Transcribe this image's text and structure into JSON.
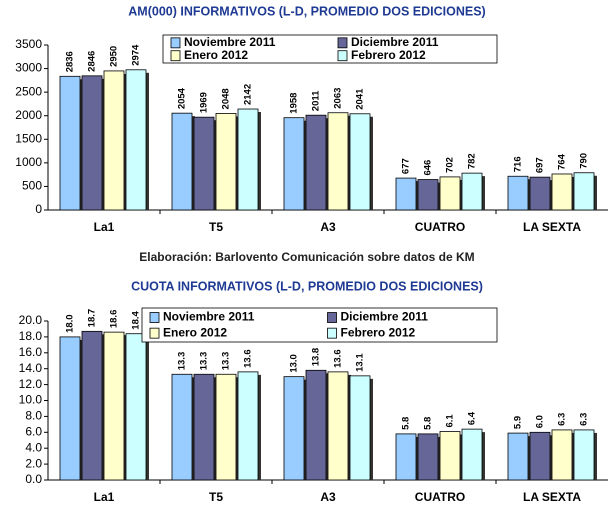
{
  "caption": "Elaboración: Barlovento Comunicación sobre datos de KM",
  "chart_data": [
    {
      "type": "bar",
      "title": "AM(000) INFORMATIVOS (L-D, PROMEDIO DOS EDICIONES)",
      "categories": [
        "La1",
        "T5",
        "A3",
        "CUATRO",
        "LA SEXTA"
      ],
      "series": [
        {
          "name": "Noviembre 2011",
          "color": "#99ccff",
          "values": [
            2836,
            2054,
            1958,
            677,
            716
          ]
        },
        {
          "name": "Diciembre 2011",
          "color": "#666699",
          "values": [
            2846,
            1969,
            2011,
            646,
            697
          ]
        },
        {
          "name": "Enero 2012",
          "color": "#ffffcc",
          "values": [
            2950,
            2048,
            2063,
            702,
            764
          ]
        },
        {
          "name": "Febrero 2012",
          "color": "#ccffff",
          "values": [
            2974,
            2142,
            2041,
            782,
            790
          ]
        }
      ],
      "ylim": [
        0,
        3500
      ],
      "yticks": [
        0,
        500,
        1000,
        1500,
        2000,
        2500,
        3000,
        3500
      ]
    },
    {
      "type": "bar",
      "title": "CUOTA INFORMATIVOS (L-D, PROMEDIO DOS EDICIONES)",
      "categories": [
        "La1",
        "T5",
        "A3",
        "CUATRO",
        "LA SEXTA"
      ],
      "series": [
        {
          "name": "Noviembre 2011",
          "color": "#99ccff",
          "values": [
            18.0,
            13.3,
            13.0,
            5.8,
            5.9
          ],
          "value_labels": [
            "18.0",
            "13.3",
            "13.0",
            "5.8",
            "5.9"
          ]
        },
        {
          "name": "Diciembre 2011",
          "color": "#666699",
          "values": [
            18.7,
            13.3,
            13.8,
            5.8,
            6.0
          ],
          "value_labels": [
            "18.7",
            "13.3",
            "13.8",
            "5.8",
            "6.0"
          ]
        },
        {
          "name": "Enero 2012",
          "color": "#ffffcc",
          "values": [
            18.6,
            13.3,
            13.6,
            6.1,
            6.3
          ],
          "value_labels": [
            "18.6",
            "13.3",
            "13.6",
            "6.1",
            "6.3"
          ]
        },
        {
          "name": "Febrero 2012",
          "color": "#ccffff",
          "values": [
            18.4,
            13.6,
            13.1,
            6.4,
            6.3
          ],
          "value_labels": [
            "18.4",
            "13.6",
            "13.1",
            "6.4",
            "6.3"
          ]
        }
      ],
      "ylim": [
        0,
        20
      ],
      "yticks": [
        {
          "value": 0,
          "label": "0.0"
        },
        {
          "value": 2,
          "label": "2.0"
        },
        {
          "value": 4,
          "label": "4.0"
        },
        {
          "value": 6,
          "label": "6.0"
        },
        {
          "value": 8,
          "label": "8.0"
        },
        {
          "value": 10,
          "label": "10.0"
        },
        {
          "value": 12,
          "label": "12.0"
        },
        {
          "value": 14,
          "label": "14.0"
        },
        {
          "value": 16,
          "label": "16.0"
        },
        {
          "value": 18,
          "label": "18.0"
        },
        {
          "value": 20,
          "label": "20.0"
        }
      ]
    }
  ]
}
